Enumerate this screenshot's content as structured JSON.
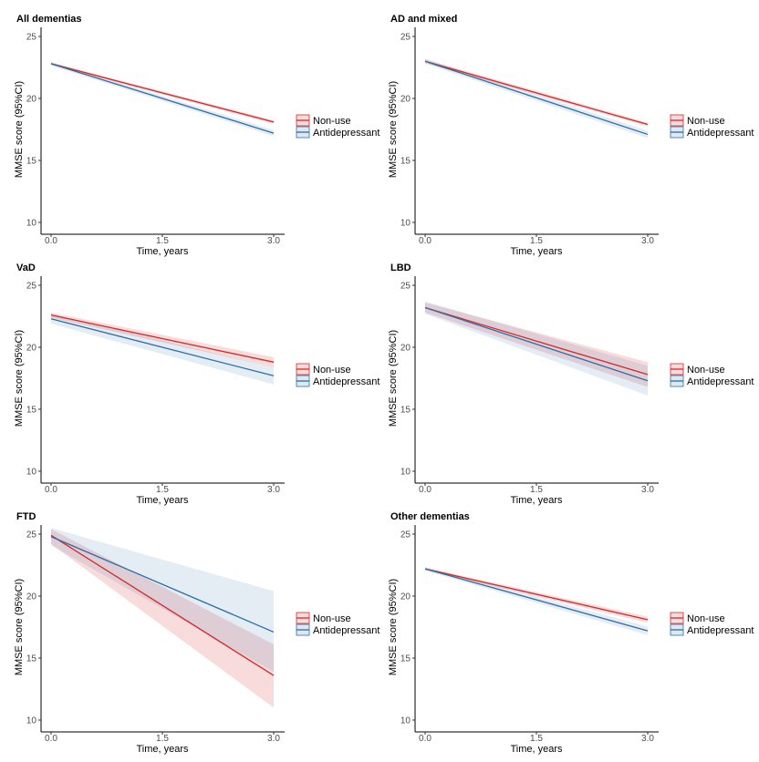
{
  "chart_data": [
    {
      "type": "line",
      "title": "All dementias",
      "xlabel": "Time, years",
      "ylabel": "MMSE score (95%CI)",
      "xlim": [
        0,
        3
      ],
      "ylim": [
        10,
        25
      ],
      "xticks": [
        "0.0",
        "1.5",
        "3.0"
      ],
      "yticks": [
        "10",
        "15",
        "20",
        "25"
      ],
      "series": [
        {
          "name": "Non-use",
          "color": "#d62728",
          "x": [
            0,
            3
          ],
          "y": [
            22.8,
            18.1
          ],
          "lower": [
            22.7,
            17.95
          ],
          "upper": [
            22.9,
            18.25
          ]
        },
        {
          "name": "Antidepressant",
          "color": "#2b6ea8",
          "x": [
            0,
            3
          ],
          "y": [
            22.8,
            17.2
          ],
          "lower": [
            22.65,
            16.95
          ],
          "upper": [
            22.95,
            17.45
          ]
        }
      ]
    },
    {
      "type": "line",
      "title": "AD and mixed",
      "xlabel": "Time, years",
      "ylabel": "MMSE score (95%CI)",
      "xlim": [
        0,
        3
      ],
      "ylim": [
        10,
        25
      ],
      "xticks": [
        "0.0",
        "1.5",
        "3.0"
      ],
      "yticks": [
        "10",
        "15",
        "20",
        "25"
      ],
      "series": [
        {
          "name": "Non-use",
          "color": "#d62728",
          "x": [
            0,
            3
          ],
          "y": [
            23.0,
            17.9
          ],
          "lower": [
            22.85,
            17.75
          ],
          "upper": [
            23.15,
            18.05
          ]
        },
        {
          "name": "Antidepressant",
          "color": "#2b6ea8",
          "x": [
            0,
            3
          ],
          "y": [
            23.0,
            17.1
          ],
          "lower": [
            22.8,
            16.8
          ],
          "upper": [
            23.2,
            17.4
          ]
        }
      ]
    },
    {
      "type": "line",
      "title": "VaD",
      "xlabel": "Time, years",
      "ylabel": "MMSE score (95%CI)",
      "xlim": [
        0,
        3
      ],
      "ylim": [
        10,
        25
      ],
      "xticks": [
        "0.0",
        "1.5",
        "3.0"
      ],
      "yticks": [
        "10",
        "15",
        "20",
        "25"
      ],
      "series": [
        {
          "name": "Non-use",
          "color": "#d62728",
          "x": [
            0,
            3
          ],
          "y": [
            22.6,
            18.8
          ],
          "lower": [
            22.4,
            18.4
          ],
          "upper": [
            22.8,
            19.2
          ]
        },
        {
          "name": "Antidepressant",
          "color": "#2b6ea8",
          "x": [
            0,
            3
          ],
          "y": [
            22.3,
            17.7
          ],
          "lower": [
            21.9,
            17.0
          ],
          "upper": [
            22.7,
            18.4
          ]
        }
      ]
    },
    {
      "type": "line",
      "title": "LBD",
      "xlabel": "Time, years",
      "ylabel": "MMSE score (95%CI)",
      "xlim": [
        0,
        3
      ],
      "ylim": [
        10,
        25
      ],
      "xticks": [
        "0.0",
        "1.5",
        "3.0"
      ],
      "yticks": [
        "10",
        "15",
        "20",
        "25"
      ],
      "series": [
        {
          "name": "Non-use",
          "color": "#d62728",
          "x": [
            0,
            3
          ],
          "y": [
            23.2,
            17.8
          ],
          "lower": [
            22.8,
            16.8
          ],
          "upper": [
            23.6,
            18.8
          ]
        },
        {
          "name": "Antidepressant",
          "color": "#2b6ea8",
          "x": [
            0,
            3
          ],
          "y": [
            23.2,
            17.3
          ],
          "lower": [
            22.7,
            16.1
          ],
          "upper": [
            23.7,
            18.5
          ]
        }
      ]
    },
    {
      "type": "line",
      "title": "FTD",
      "xlabel": "Time, years",
      "ylabel": "MMSE score (95%CI)",
      "xlim": [
        0,
        3
      ],
      "ylim": [
        10,
        25
      ],
      "xticks": [
        "0.0",
        "1.5",
        "3.0"
      ],
      "yticks": [
        "10",
        "15",
        "20",
        "25"
      ],
      "series": [
        {
          "name": "Non-use",
          "color": "#d62728",
          "x": [
            0,
            3
          ],
          "y": [
            24.9,
            13.6
          ],
          "lower": [
            24.2,
            11.0
          ],
          "upper": [
            25.4,
            16.1
          ]
        },
        {
          "name": "Antidepressant",
          "color": "#2b6ea8",
          "x": [
            0,
            3
          ],
          "y": [
            24.8,
            17.1
          ],
          "lower": [
            24.1,
            13.9
          ],
          "upper": [
            25.5,
            20.4
          ]
        }
      ]
    },
    {
      "type": "line",
      "title": "Other dementias",
      "xlabel": "Time, years",
      "ylabel": "MMSE score (95%CI)",
      "xlim": [
        0,
        3
      ],
      "ylim": [
        10,
        25
      ],
      "xticks": [
        "0.0",
        "1.5",
        "3.0"
      ],
      "yticks": [
        "10",
        "15",
        "20",
        "25"
      ],
      "series": [
        {
          "name": "Non-use",
          "color": "#d62728",
          "x": [
            0,
            3
          ],
          "y": [
            22.2,
            18.1
          ],
          "lower": [
            22.1,
            17.85
          ],
          "upper": [
            22.3,
            18.35
          ]
        },
        {
          "name": "Antidepressant",
          "color": "#2b6ea8",
          "x": [
            0,
            3
          ],
          "y": [
            22.2,
            17.2
          ],
          "lower": [
            22.05,
            16.85
          ],
          "upper": [
            22.35,
            17.55
          ]
        }
      ]
    }
  ]
}
